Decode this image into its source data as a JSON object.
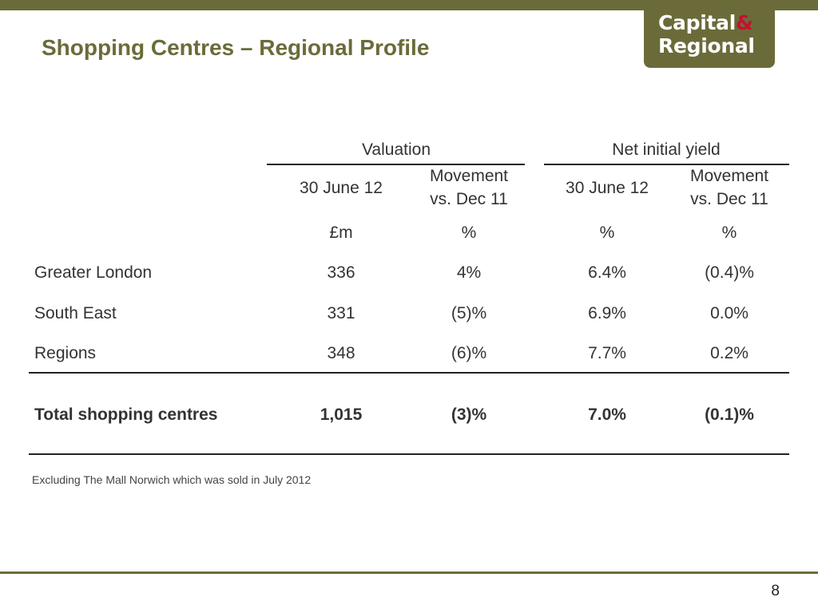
{
  "brand": {
    "line1": "Capital",
    "amp": "&",
    "line2": "Regional",
    "color": "#6b6b3a",
    "accent": "#c8102e"
  },
  "title": "Shopping Centres – Regional Profile",
  "table": {
    "groups": [
      "Valuation",
      "Net initial yield"
    ],
    "col_headers": [
      {
        "line1": "30 June 12",
        "line2": ""
      },
      {
        "line1": "Movement",
        "line2": "vs. Dec 11"
      },
      {
        "line1": "30 June 12",
        "line2": ""
      },
      {
        "line1": "Movement",
        "line2": "vs. Dec 11"
      }
    ],
    "units": [
      "£m",
      "%",
      "%",
      "%"
    ],
    "rows": [
      {
        "label": "Greater London",
        "values": [
          "336",
          "4%",
          "6.4%",
          "(0.4)%"
        ]
      },
      {
        "label": "South East",
        "values": [
          "331",
          "(5)%",
          "6.9%",
          "0.0%"
        ]
      },
      {
        "label": "Regions",
        "values": [
          "348",
          "(6)%",
          "7.7%",
          "0.2%"
        ]
      }
    ],
    "total": {
      "label": "Total shopping centres",
      "values": [
        "1,015",
        "(3)%",
        "7.0%",
        "(0.1)%"
      ]
    }
  },
  "footnote": "Excluding The Mall Norwich which was sold in July 2012",
  "page_number": "8"
}
